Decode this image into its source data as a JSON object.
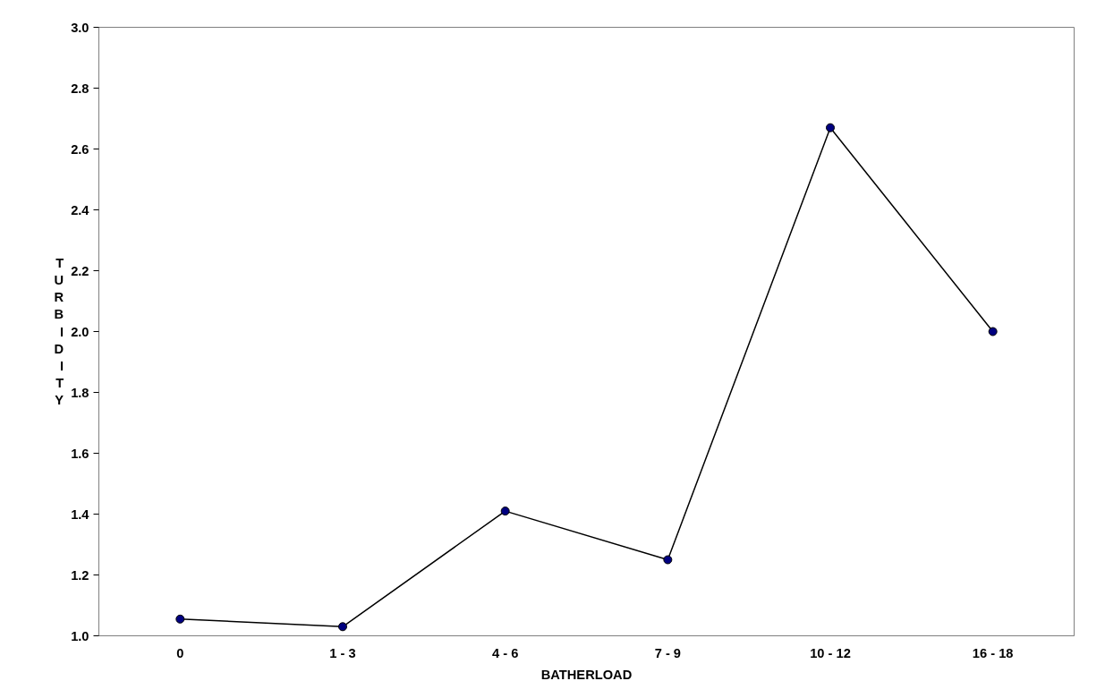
{
  "chart_data": {
    "type": "line",
    "xlabel": "BATHERLOAD",
    "ylabel": "TURBIDITY",
    "categories": [
      "0",
      "1 - 3",
      "4 - 6",
      "7 - 9",
      "10 - 12",
      "16 - 18"
    ],
    "series": [
      {
        "color": "#000000",
        "values": [
          1.055,
          1.03,
          1.41,
          1.25,
          2.67,
          2.0
        ]
      }
    ],
    "marker": "circle",
    "line_style": "solid",
    "grid": false,
    "ylim": [
      1.0,
      3.0
    ],
    "yticks": [
      {
        "value": 1.0,
        "label": "1.0"
      },
      {
        "value": 1.2,
        "label": "1.2"
      },
      {
        "value": 1.4,
        "label": "1.4"
      },
      {
        "value": 1.6,
        "label": "1.6"
      },
      {
        "value": 1.8,
        "label": "1.8"
      },
      {
        "value": 2.0,
        "label": "2.0"
      },
      {
        "value": 2.2,
        "label": "2.2"
      },
      {
        "value": 2.4,
        "label": "2.4"
      },
      {
        "value": 2.6,
        "label": "2.6"
      },
      {
        "value": 2.8,
        "label": "2.8"
      },
      {
        "value": 3.0,
        "label": "3.0"
      }
    ]
  }
}
